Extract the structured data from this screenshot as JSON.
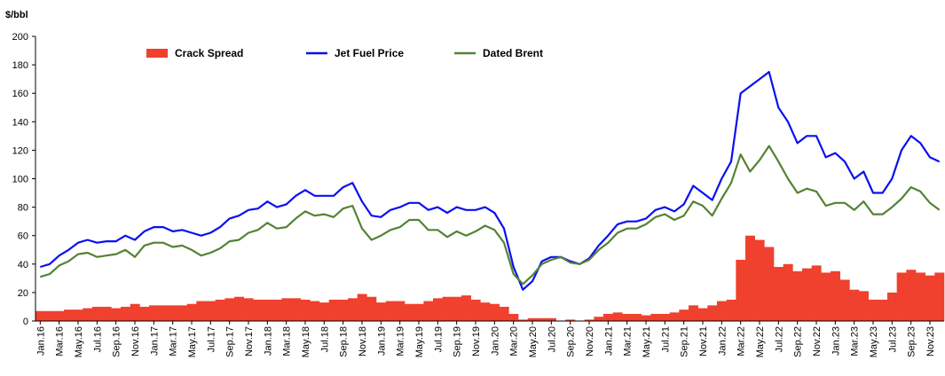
{
  "chart_data": {
    "type": "line",
    "ylabel": "$/bbl",
    "categories": [
      "Jan.16",
      null,
      "Mar.16",
      null,
      "May.16",
      null,
      "Jul.16",
      null,
      "Sep.16",
      null,
      "Nov.16",
      null,
      "Jan.17",
      null,
      "Mar.17",
      null,
      "May.17",
      null,
      "Jul.17",
      null,
      "Sep.17",
      null,
      "Nov.17",
      null,
      "Jan.18",
      null,
      "Mar.18",
      null,
      "May.18",
      null,
      "Jul.18",
      null,
      "Sep.18",
      null,
      "Nov.18",
      null,
      "Jan.19",
      null,
      "Mar.19",
      null,
      "May.19",
      null,
      "Jul.19",
      null,
      "Sep.19",
      null,
      "Nov.19",
      null,
      "Jan.20",
      null,
      "Mar.20",
      null,
      "May.20",
      null,
      "Jul.20",
      null,
      "Sep.20",
      null,
      "Nov.20",
      null,
      "Jan.21",
      null,
      "Mar.21",
      null,
      "May.21",
      null,
      "Jul.21",
      null,
      "Sep.21",
      null,
      "Nov.21",
      null,
      "Jan.22",
      null,
      "Mar.22",
      null,
      "May.22",
      null,
      "Jul.22",
      null,
      "Sep.22",
      null,
      "Nov.22",
      null,
      "Jan.23",
      null,
      "Mar.23",
      null,
      "May.23",
      null,
      "Jul.23",
      null,
      "Sep.23",
      null,
      "Nov.23",
      null
    ],
    "series": [
      {
        "name": "Crack Spread",
        "color": "#f0402e",
        "kind": "area",
        "values": [
          7,
          7,
          7,
          8,
          8,
          9,
          10,
          10,
          9,
          10,
          12,
          10,
          11,
          11,
          11,
          11,
          12,
          14,
          14,
          15,
          16,
          17,
          16,
          15,
          15,
          15,
          16,
          16,
          15,
          14,
          13,
          15,
          15,
          16,
          19,
          17,
          13,
          14,
          14,
          12,
          12,
          14,
          16,
          17,
          17,
          18,
          15,
          13,
          12,
          10,
          5,
          1,
          2,
          2,
          2,
          0,
          1,
          0,
          1,
          3,
          5,
          6,
          5,
          5,
          4,
          5,
          5,
          6,
          8,
          11,
          9,
          11,
          14,
          15,
          43,
          60,
          57,
          52,
          38,
          40,
          35,
          37,
          39,
          34,
          35,
          29,
          22,
          21,
          15,
          15,
          20,
          34,
          36,
          34,
          32,
          34
        ]
      },
      {
        "name": "Jet Fuel Price",
        "color": "#0a10f0",
        "kind": "line",
        "values": [
          38,
          40,
          46,
          50,
          55,
          57,
          55,
          56,
          56,
          60,
          57,
          63,
          66,
          66,
          63,
          64,
          62,
          60,
          62,
          66,
          72,
          74,
          78,
          79,
          84,
          80,
          82,
          88,
          92,
          88,
          88,
          88,
          94,
          97,
          84,
          74,
          73,
          78,
          80,
          83,
          83,
          78,
          80,
          76,
          80,
          78,
          78,
          80,
          76,
          65,
          38,
          22,
          28,
          42,
          45,
          45,
          42,
          40,
          44,
          53,
          60,
          68,
          70,
          70,
          72,
          78,
          80,
          77,
          82,
          95,
          90,
          85,
          100,
          112,
          160,
          165,
          170,
          175,
          150,
          140,
          125,
          130,
          130,
          115,
          118,
          112,
          100,
          105,
          90,
          90,
          100,
          120,
          130,
          125,
          115,
          112
        ]
      },
      {
        "name": "Dated Brent",
        "color": "#548235",
        "kind": "line",
        "values": [
          31,
          33,
          39,
          42,
          47,
          48,
          45,
          46,
          47,
          50,
          45,
          53,
          55,
          55,
          52,
          53,
          50,
          46,
          48,
          51,
          56,
          57,
          62,
          64,
          69,
          65,
          66,
          72,
          77,
          74,
          75,
          73,
          79,
          81,
          65,
          57,
          60,
          64,
          66,
          71,
          71,
          64,
          64,
          59,
          63,
          60,
          63,
          67,
          64,
          55,
          33,
          26,
          32,
          40,
          43,
          45,
          41,
          40,
          43,
          50,
          55,
          62,
          65,
          65,
          68,
          73,
          75,
          71,
          74,
          84,
          81,
          74,
          86,
          97,
          117,
          105,
          113,
          123,
          112,
          100,
          90,
          93,
          91,
          81,
          83,
          83,
          78,
          84,
          75,
          75,
          80,
          86,
          94,
          91,
          83,
          78
        ]
      }
    ],
    "ylim": [
      0,
      200
    ],
    "yticks": [
      0,
      20,
      40,
      60,
      80,
      100,
      120,
      140,
      160,
      180,
      200
    ],
    "legend": "top"
  }
}
